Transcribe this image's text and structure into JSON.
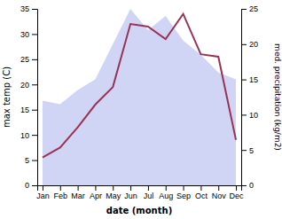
{
  "chart_data": {
    "type": "line",
    "categories": [
      "Jan",
      "Feb",
      "Mar",
      "Apr",
      "May",
      "Jun",
      "Jul",
      "Aug",
      "Sep",
      "Oct",
      "Nov",
      "Dec"
    ],
    "series": [
      {
        "type": "area",
        "color": "#c8cef5",
        "axis": "y2",
        "values": [
          12.0,
          11.5,
          13.5,
          15.0,
          20.0,
          25.0,
          22.0,
          24.0,
          20.5,
          18.5,
          16.0,
          15.0
        ]
      },
      {
        "type": "line",
        "color": "#993355",
        "values": [
          5.5,
          7.5,
          11.5,
          16.0,
          19.5,
          32.0,
          31.5,
          29.0,
          34.0,
          26.0,
          25.5,
          9.0
        ]
      }
    ],
    "xlabel": "date (month)",
    "ylabel": "max temp (C)",
    "y2label": "med. precipitation (kg/m2)",
    "ylim": [
      0,
      35
    ],
    "yticks": [
      0,
      5,
      10,
      15,
      20,
      25,
      30,
      35
    ],
    "y2lim": [
      0,
      25
    ],
    "y2ticks": [
      0,
      5,
      10,
      15,
      20,
      25
    ],
    "grid": false
  }
}
